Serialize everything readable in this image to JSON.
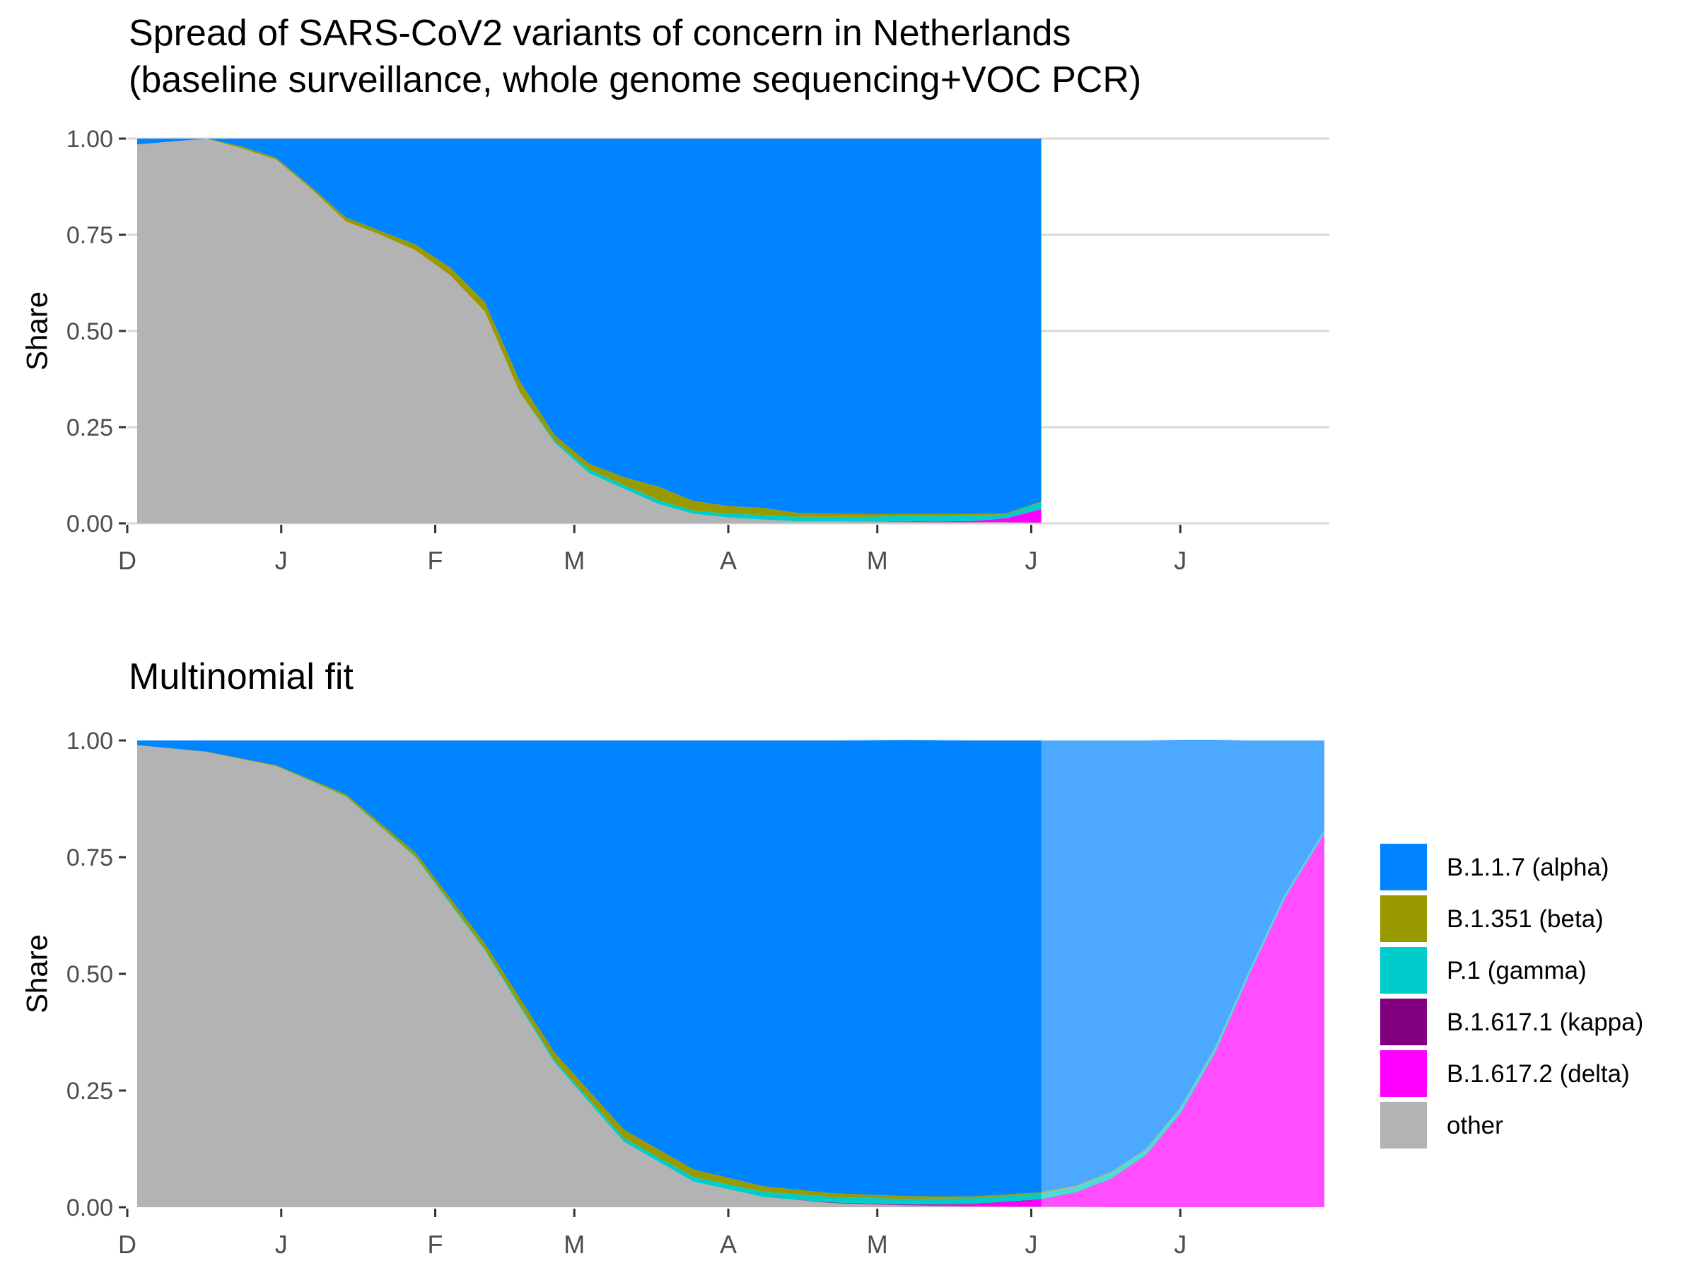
{
  "chart_data": [
    {
      "type": "area",
      "stacked": true,
      "title": "Spread of SARS-CoV2 variants of concern in Netherlands",
      "subtitle": "(baseline surveillance, whole genome sequencing+VOC PCR)",
      "ylabel": "Share",
      "xlabel": "",
      "xlim": [
        "2020-12-01",
        "2021-07-31"
      ],
      "ylim": [
        0,
        1
      ],
      "yticks": [
        0,
        0.25,
        0.5,
        0.75,
        1
      ],
      "ytick_labels": [
        "0.00",
        "0.25",
        "0.50",
        "0.75",
        "1.00"
      ],
      "xticks": [
        "2020-12-01",
        "2021-01-01",
        "2021-02-01",
        "2021-03-01",
        "2021-04-01",
        "2021-05-01",
        "2021-06-01",
        "2021-07-01"
      ],
      "xtick_labels": [
        "D",
        "J",
        "F",
        "M",
        "A",
        "M",
        "J",
        "J"
      ],
      "grid": "horizontal",
      "x": [
        "2020-12-03",
        "2020-12-17",
        "2020-12-24",
        "2020-12-31",
        "2021-01-07",
        "2021-01-14",
        "2021-01-21",
        "2021-01-28",
        "2021-02-04",
        "2021-02-11",
        "2021-02-18",
        "2021-02-25",
        "2021-03-04",
        "2021-03-11",
        "2021-03-18",
        "2021-03-25",
        "2021-04-01",
        "2021-04-08",
        "2021-04-15",
        "2021-04-22",
        "2021-04-29",
        "2021-05-06",
        "2021-05-13",
        "2021-05-20",
        "2021-05-27",
        "2021-06-03"
      ],
      "series": [
        {
          "name": "other",
          "values": [
            0.985,
            1.0,
            0.975,
            0.945,
            0.87,
            0.785,
            0.75,
            0.71,
            0.645,
            0.55,
            0.34,
            0.21,
            0.13,
            0.09,
            0.05,
            0.025,
            0.015,
            0.01,
            0.005,
            0.005,
            0.004,
            0.004,
            0.003,
            0.003,
            0.003,
            0.002
          ]
        },
        {
          "name": "B.1.617.2 (delta)",
          "values": [
            0,
            0,
            0,
            0,
            0,
            0,
            0,
            0,
            0,
            0,
            0,
            0,
            0,
            0,
            0,
            0,
            0,
            0,
            0,
            0,
            0,
            0.002,
            0.002,
            0.003,
            0.01,
            0.035
          ]
        },
        {
          "name": "B.1.617.1 (kappa)",
          "values": [
            0,
            0,
            0,
            0,
            0,
            0,
            0,
            0,
            0,
            0,
            0,
            0,
            0,
            0,
            0,
            0,
            0,
            0,
            0,
            0,
            0,
            0,
            0,
            0,
            0,
            0
          ]
        },
        {
          "name": "P.1 (gamma)",
          "values": [
            0,
            0,
            0,
            0,
            0,
            0,
            0,
            0,
            0,
            0,
            0,
            0.005,
            0.01,
            0.01,
            0.01,
            0.008,
            0.01,
            0.012,
            0.012,
            0.012,
            0.013,
            0.013,
            0.014,
            0.015,
            0.01,
            0.018
          ]
        },
        {
          "name": "B.1.351 (beta)",
          "values": [
            0,
            0,
            0.005,
            0.005,
            0.005,
            0.01,
            0.01,
            0.015,
            0.02,
            0.025,
            0.03,
            0.015,
            0.015,
            0.02,
            0.035,
            0.025,
            0.02,
            0.018,
            0.01,
            0.008,
            0.007,
            0.005,
            0.005,
            0.004,
            0.003,
            0.002
          ]
        },
        {
          "name": "B.1.1.7 (alpha)",
          "values": [
            0.015,
            0.0,
            0.02,
            0.05,
            0.125,
            0.205,
            0.24,
            0.275,
            0.335,
            0.425,
            0.63,
            0.77,
            0.845,
            0.88,
            0.905,
            0.942,
            0.955,
            0.96,
            0.973,
            0.975,
            0.976,
            0.976,
            0.976,
            0.975,
            0.974,
            0.943
          ]
        }
      ]
    },
    {
      "type": "area",
      "stacked": true,
      "title": "Multinomial fit",
      "ylabel": "Share",
      "xlabel": "",
      "xlim": [
        "2020-12-01",
        "2021-07-31"
      ],
      "ylim": [
        0,
        1
      ],
      "yticks": [
        0,
        0.25,
        0.5,
        0.75,
        1
      ],
      "ytick_labels": [
        "0.00",
        "0.25",
        "0.50",
        "0.75",
        "1.00"
      ],
      "xticks": [
        "2020-12-01",
        "2021-01-01",
        "2021-02-01",
        "2021-03-01",
        "2021-04-01",
        "2021-05-01",
        "2021-06-01",
        "2021-07-01"
      ],
      "xtick_labels": [
        "D",
        "J",
        "F",
        "M",
        "A",
        "M",
        "J",
        "J"
      ],
      "grid": "none",
      "fitted_until": "2021-06-03",
      "x": [
        "2020-12-03",
        "2020-12-17",
        "2020-12-31",
        "2021-01-14",
        "2021-01-28",
        "2021-02-11",
        "2021-02-25",
        "2021-03-11",
        "2021-03-25",
        "2021-04-08",
        "2021-04-22",
        "2021-05-06",
        "2021-05-20",
        "2021-06-03",
        "2021-06-10",
        "2021-06-17",
        "2021-06-24",
        "2021-07-01",
        "2021-07-08",
        "2021-07-15",
        "2021-07-22",
        "2021-07-30"
      ],
      "series": [
        {
          "name": "other",
          "values": [
            0.99,
            0.975,
            0.945,
            0.88,
            0.75,
            0.55,
            0.31,
            0.14,
            0.055,
            0.022,
            0.009,
            0.004,
            0.002,
            0.001,
            0.001,
            0.0,
            0.0,
            0.0,
            0.0,
            0.0,
            0.0,
            0.0
          ]
        },
        {
          "name": "B.1.617.2 (delta)",
          "values": [
            0,
            0,
            0,
            0,
            0,
            0,
            0,
            0,
            0,
            0,
            0,
            0.001,
            0.004,
            0.015,
            0.03,
            0.06,
            0.11,
            0.2,
            0.33,
            0.5,
            0.66,
            0.8
          ]
        },
        {
          "name": "B.1.617.1 (kappa)",
          "values": [
            0,
            0,
            0,
            0,
            0,
            0,
            0,
            0,
            0,
            0,
            0.001,
            0.001,
            0.001,
            0.001,
            0.001,
            0.001,
            0.001,
            0.001,
            0.001,
            0.001,
            0.001,
            0.001
          ]
        },
        {
          "name": "P.1 (gamma)",
          "values": [
            0,
            0,
            0,
            0.001,
            0.002,
            0.003,
            0.005,
            0.008,
            0.01,
            0.011,
            0.012,
            0.012,
            0.012,
            0.012,
            0.012,
            0.012,
            0.011,
            0.011,
            0.01,
            0.009,
            0.008,
            0.007
          ]
        },
        {
          "name": "B.1.351 (beta)",
          "values": [
            0,
            0.001,
            0.002,
            0.004,
            0.008,
            0.012,
            0.017,
            0.018,
            0.016,
            0.012,
            0.008,
            0.006,
            0.004,
            0.003,
            0.002,
            0.002,
            0.001,
            0.001,
            0.001,
            0.0,
            0.0,
            0.0
          ]
        },
        {
          "name": "B.1.1.7 (alpha)",
          "values": [
            0.01,
            0.024,
            0.053,
            0.115,
            0.24,
            0.435,
            0.668,
            0.834,
            0.919,
            0.955,
            0.97,
            0.977,
            0.977,
            0.968,
            0.954,
            0.925,
            0.877,
            0.788,
            0.659,
            0.49,
            0.331,
            0.192
          ]
        }
      ],
      "legend": {
        "placement": "right",
        "entries": [
          "B.1.1.7 (alpha)",
          "B.1.351 (beta)",
          "P.1 (gamma)",
          "B.1.617.1 (kappa)",
          "B.1.617.2 (delta)",
          "other"
        ]
      }
    }
  ],
  "colors": {
    "B.1.1.7 (alpha)": "#0084FF",
    "B.1.351 (beta)": "#999900",
    "P.1 (gamma)": "#00CCCC",
    "B.1.617.1 (kappa)": "#800080",
    "B.1.617.2 (delta)": "#FF00FF",
    "other": "#B3B3B3",
    "projection_overlay": "#FFFFFF",
    "gridline": "#D9D9D9",
    "axis_text": "#4D4D4D"
  }
}
